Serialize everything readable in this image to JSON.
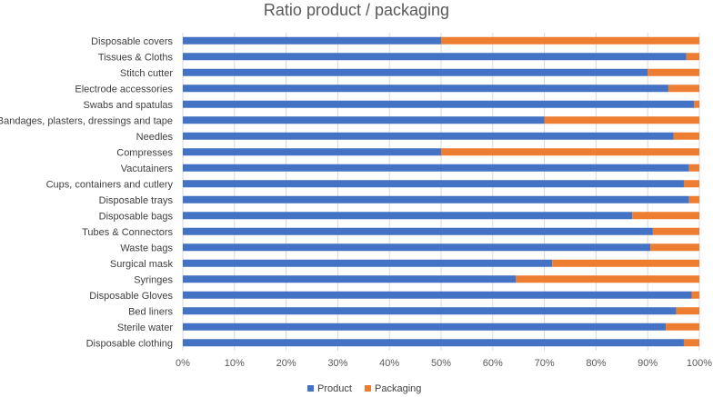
{
  "chart_data": {
    "type": "bar",
    "orientation": "horizontal",
    "stacked": "percent",
    "title": "Ratio product / packaging",
    "xlabel": "",
    "ylabel": "",
    "xlim": [
      0,
      100
    ],
    "x_ticks": [
      "0%",
      "10%",
      "20%",
      "30%",
      "40%",
      "50%",
      "60%",
      "70%",
      "80%",
      "90%",
      "100%"
    ],
    "grid": true,
    "legend_position": "bottom",
    "categories": [
      "Disposable covers",
      "Tissues & Cloths",
      "Stitch cutter",
      "Electrode accessories",
      "Swabs and spatulas",
      "Bandages, plasters, dressings and tape",
      "Needles",
      "Compresses",
      "Vacutainers",
      "Cups, containers and cutlery",
      "Disposable trays",
      "Disposable bags",
      "Tubes & Connectors",
      "Waste bags",
      "Surgical mask",
      "Syringes",
      "Disposable Gloves",
      "Bed liners",
      "Sterile water",
      "Disposable clothing"
    ],
    "series": [
      {
        "name": "Product",
        "color": "#4472C4",
        "values": [
          50,
          97.5,
          90,
          94,
          99,
          70,
          95,
          50,
          98,
          97,
          98,
          87,
          91,
          90.5,
          71.5,
          64.5,
          98.5,
          95.5,
          93.5,
          97
        ]
      },
      {
        "name": "Packaging",
        "color": "#ED7D31",
        "values": [
          50,
          2.5,
          10,
          6,
          1,
          30,
          5,
          50,
          2,
          3,
          2,
          13,
          9,
          9.5,
          28.5,
          35.5,
          1.5,
          4.5,
          6.5,
          3
        ]
      }
    ]
  }
}
